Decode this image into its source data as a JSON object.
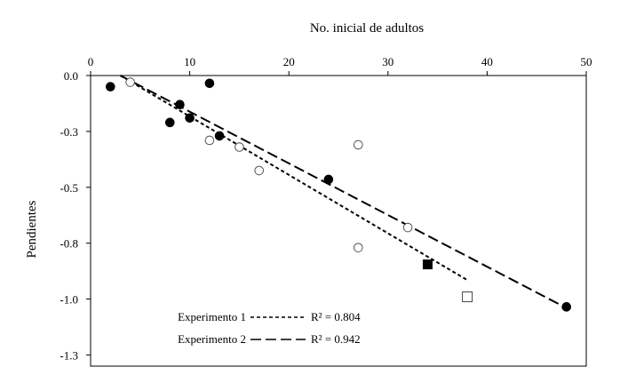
{
  "chart_data": {
    "type": "scatter",
    "xlabel": "No. inicial de adultos",
    "ylabel": "Pendientes",
    "xlim": [
      0,
      50
    ],
    "ylim": [
      -1.3,
      0.0
    ],
    "x_ticks": [
      0,
      10,
      20,
      30,
      40,
      50
    ],
    "x_tick_labels": [
      "0",
      "10",
      "20",
      "30",
      "40",
      "50"
    ],
    "y_ticks": [
      0.0,
      -0.25,
      -0.5,
      -0.75,
      -1.0,
      -1.25
    ],
    "y_tick_labels": [
      "0.0",
      "-0.3",
      "-0.5",
      "-0.8",
      "-1.0",
      "-1.3"
    ],
    "grid": false,
    "legend_position": "bottom-left",
    "series": [
      {
        "name": "Experimento 1",
        "marker": "circle-filled",
        "points": [
          {
            "x": 2,
            "y": -0.05
          },
          {
            "x": 8,
            "y": -0.21
          },
          {
            "x": 9,
            "y": -0.13
          },
          {
            "x": 10,
            "y": -0.19
          },
          {
            "x": 12,
            "y": -0.035
          },
          {
            "x": 13,
            "y": -0.27
          },
          {
            "x": 24,
            "y": -0.465
          },
          {
            "x": 48,
            "y": -1.035
          }
        ]
      },
      {
        "name": "Experimento 2",
        "marker": "circle-open",
        "points": [
          {
            "x": 4,
            "y": -0.03
          },
          {
            "x": 12,
            "y": -0.29
          },
          {
            "x": 15,
            "y": -0.32
          },
          {
            "x": 17,
            "y": -0.425
          },
          {
            "x": 27,
            "y": -0.31
          },
          {
            "x": 27,
            "y": -0.77
          },
          {
            "x": 32,
            "y": -0.68
          }
        ]
      },
      {
        "marker": "square-filled",
        "points": [
          {
            "x": 34,
            "y": -0.845
          }
        ]
      },
      {
        "marker": "square-open",
        "points": [
          {
            "x": 38,
            "y": -0.99
          }
        ]
      }
    ],
    "trendlines": [
      {
        "name": "Experimento 1",
        "style": "short-dash",
        "x": [
          3,
          38
        ],
        "y": [
          0.0,
          -0.915
        ],
        "r2_label": "R² = 0.804"
      },
      {
        "name": "Experimento 2",
        "style": "long-dash",
        "x": [
          3,
          48
        ],
        "y": [
          0.0,
          -1.04
        ],
        "r2_label": "R² = 0.942"
      }
    ]
  }
}
